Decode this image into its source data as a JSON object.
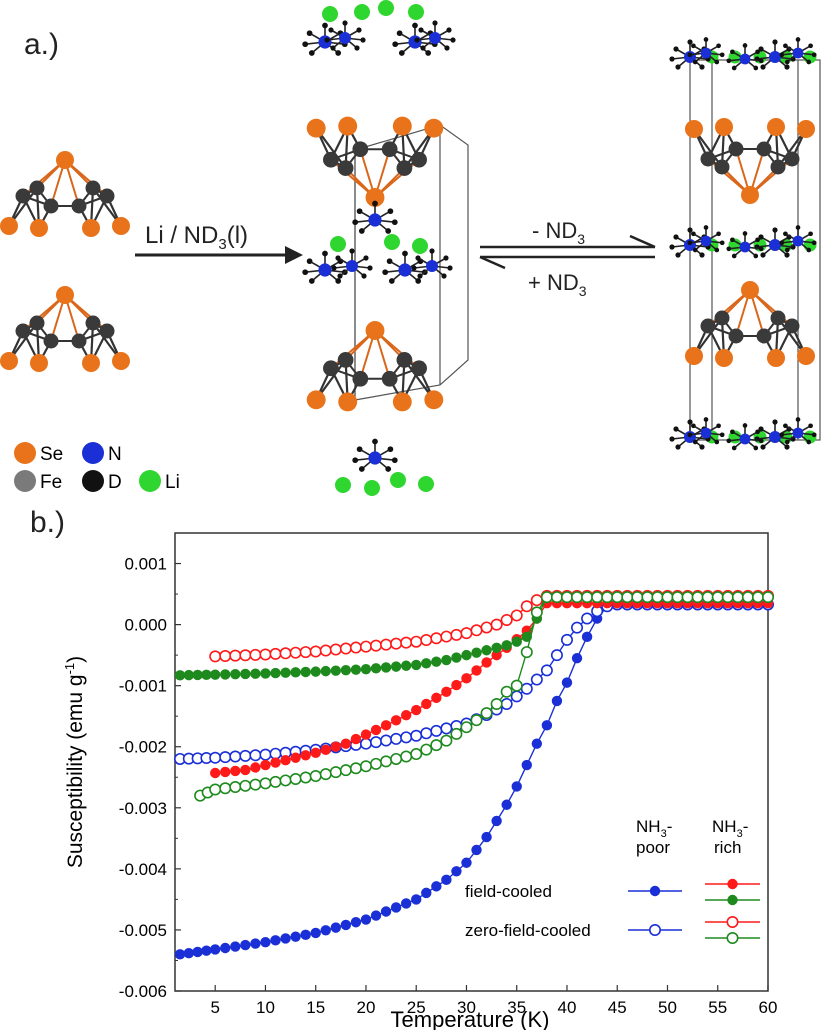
{
  "panel_a": {
    "label": "a.)",
    "arrow_label": "Li / ND",
    "arrow_label_sub": "3",
    "arrow_label_tail": "(l)",
    "eq_top": "- ND",
    "eq_top_sub": "3",
    "eq_bottom": "+ ND",
    "eq_bottom_sub": "3",
    "legend": [
      {
        "symbol": "Se",
        "color": "#e8731a"
      },
      {
        "symbol": "N",
        "color": "#1a2fd6"
      },
      {
        "symbol": "Fe",
        "color": "#7a7a7a"
      },
      {
        "symbol": "D",
        "color": "#111111"
      },
      {
        "symbol": "Li",
        "color": "#2fd62f"
      }
    ],
    "colors": {
      "se": "#e8731a",
      "fe": "#3a3a3a",
      "n": "#1a2fd6",
      "d": "#111111",
      "li": "#2fd62f",
      "bond_orange": "#d9661a"
    }
  },
  "panel_b": {
    "label": "b.)",
    "legend": {
      "col_poor": "NH₃-\npoor",
      "col_poor_l1": "NH",
      "col_poor_sub": "3",
      "col_poor_l1_tail": "-",
      "col_poor_l2": "poor",
      "col_rich_l1": "NH",
      "col_rich_sub": "3",
      "col_rich_l1_tail": "-",
      "col_rich_l2": "rich",
      "row_fc": "field-cooled",
      "row_zfc": "zero-field-cooled"
    }
  },
  "chart_data": {
    "type": "scatter",
    "xlabel": "Temperature (K)",
    "ylabel": "Susceptibility (emu g",
    "ylabel_sup": "-1",
    "ylabel_tail": ")",
    "xlim": [
      1,
      60
    ],
    "ylim": [
      -0.006,
      0.0015
    ],
    "xticks": [
      5,
      10,
      15,
      20,
      25,
      30,
      35,
      40,
      45,
      50,
      55,
      60
    ],
    "yticks": [
      -0.006,
      -0.005,
      -0.004,
      -0.003,
      -0.002,
      -0.001,
      0.0,
      0.001
    ],
    "ytick_labels": [
      "-0.006",
      "-0.005",
      "-0.004",
      "-0.003",
      "-0.002",
      "-0.001",
      "0.000",
      "0.001"
    ],
    "series": [
      {
        "name": "NH3-poor field-cooled",
        "color": "#1a2fd6",
        "filled": true,
        "x": [
          1.5,
          5,
          10,
          15,
          20,
          25,
          28,
          30,
          32,
          34,
          35,
          36,
          37,
          38,
          39,
          40,
          41,
          42,
          43,
          44,
          45,
          50,
          55,
          60
        ],
        "y": [
          -0.0054,
          -0.00532,
          -0.0052,
          -0.00505,
          -0.00483,
          -0.0045,
          -0.00418,
          -0.0039,
          -0.00348,
          -0.00295,
          -0.00265,
          -0.0023,
          -0.00195,
          -0.00165,
          -0.00125,
          -0.00095,
          -0.00055,
          -0.0002,
          0.0001,
          0.0003,
          0.00033,
          0.00033,
          0.00033,
          0.00033
        ]
      },
      {
        "name": "NH3-poor zero-field-cooled",
        "color": "#1a2fd6",
        "filled": false,
        "x": [
          1.5,
          5,
          10,
          15,
          20,
          25,
          30,
          32,
          34,
          36,
          38,
          39,
          40,
          41,
          42,
          43,
          44,
          45,
          50,
          55,
          60
        ],
        "y": [
          -0.0022,
          -0.00218,
          -0.00213,
          -0.00205,
          -0.00195,
          -0.00182,
          -0.00162,
          -0.00148,
          -0.0013,
          -0.00105,
          -0.00075,
          -0.0005,
          -0.00025,
          -5e-05,
          0.0001,
          0.00022,
          0.0003,
          0.00033,
          0.00033,
          0.00033,
          0.00033
        ]
      },
      {
        "name": "NH3-rich (red) field-cooled",
        "color": "#ff1a1a",
        "filled": true,
        "x": [
          5,
          8,
          10,
          12,
          15,
          18,
          20,
          22,
          25,
          28,
          30,
          32,
          34,
          36,
          37,
          38,
          40,
          45,
          50,
          55,
          60
        ],
        "y": [
          -0.00243,
          -0.00238,
          -0.0023,
          -0.00222,
          -0.0021,
          -0.00195,
          -0.0018,
          -0.00165,
          -0.0014,
          -0.0011,
          -0.00088,
          -0.00062,
          -0.00038,
          -0.0001,
          0.0001,
          0.00035,
          0.00035,
          0.00035,
          0.00035,
          0.00035,
          0.00035
        ]
      },
      {
        "name": "NH3-rich (red) zero-field-cooled",
        "color": "#ff1a1a",
        "filled": false,
        "x": [
          5,
          10,
          15,
          20,
          25,
          30,
          33,
          35,
          36,
          37,
          38,
          40,
          45,
          50,
          55,
          60
        ],
        "y": [
          -0.00052,
          -0.00049,
          -0.00044,
          -0.00036,
          -0.00028,
          -0.00014,
          0.0,
          0.00015,
          0.0003,
          0.0004,
          0.00047,
          0.00047,
          0.00047,
          0.00047,
          0.00047,
          0.00047
        ]
      },
      {
        "name": "NH3-rich (green) field-cooled",
        "color": "#1e8a1e",
        "filled": true,
        "x": [
          1.5,
          5,
          10,
          15,
          20,
          25,
          28,
          30,
          32,
          34,
          35,
          36,
          37,
          38,
          40,
          45,
          50,
          55,
          60
        ],
        "y": [
          -0.00083,
          -0.00082,
          -0.0008,
          -0.00077,
          -0.00073,
          -0.00066,
          -0.00058,
          -0.0005,
          -0.00042,
          -0.00034,
          -0.00028,
          -0.0002,
          0.0001,
          0.00045,
          0.00045,
          0.00045,
          0.00045,
          0.00045,
          0.00045
        ]
      },
      {
        "name": "NH3-rich (green) zero-field-cooled",
        "color": "#1e8a1e",
        "filled": false,
        "x": [
          3.5,
          5,
          10,
          15,
          20,
          25,
          28,
          30,
          32,
          33,
          34,
          35,
          36,
          37,
          38,
          40,
          45,
          50,
          55,
          60
        ],
        "y": [
          -0.0028,
          -0.0027,
          -0.0026,
          -0.00248,
          -0.00232,
          -0.00212,
          -0.0019,
          -0.00168,
          -0.00145,
          -0.0013,
          -0.0011,
          -0.001,
          -0.00045,
          0.0002,
          0.00045,
          0.00045,
          0.00045,
          0.00045,
          0.00045,
          0.00045
        ]
      }
    ]
  }
}
